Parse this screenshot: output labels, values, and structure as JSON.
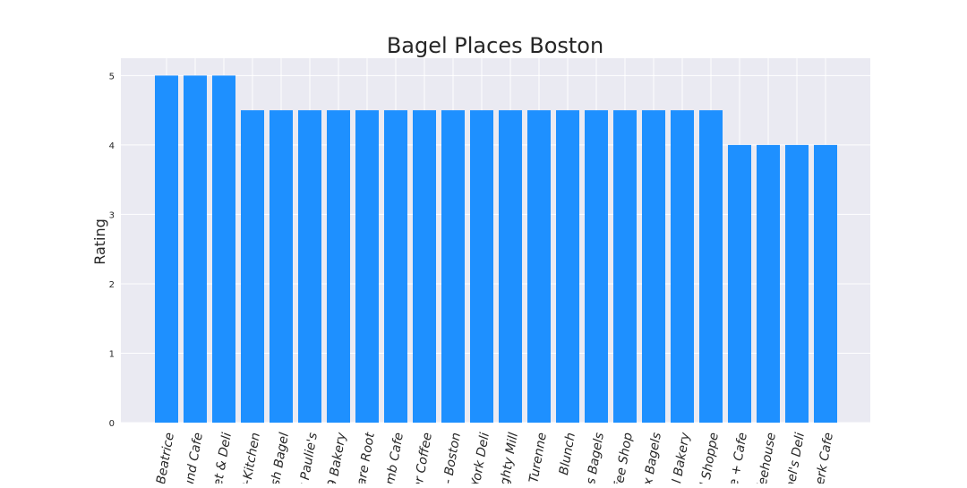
{
  "colors": {
    "bar": "#1E90FF",
    "plot_background": "#EAEAF2",
    "grid": "#FFFFFF"
  },
  "chart_data": {
    "type": "bar",
    "title": "Bagel Places Boston",
    "xlabel": "",
    "ylabel": "Rating",
    "ylim": [
      0,
      5.25
    ],
    "yticks": [
      "0",
      "1",
      "2",
      "3",
      "4",
      "5"
    ],
    "grid": true,
    "categories": [
      "Beatrice",
      "und Cafe",
      "ket & Deli",
      "+Kitchen",
      "sh Bagel",
      "t Paulie's",
      "9 Bakery",
      "are Root",
      "omb Cafe",
      "er Coffee",
      "- Boston",
      "York Deli",
      "ighty Mill",
      "Turenne",
      "Blunch",
      "s Bagels",
      "ffee Shop",
      "ox Bagels",
      "el Bakery",
      "l Shoppe",
      "e + Cafe",
      "ffeehouse",
      "ael's Deli",
      "Perk Cafe"
    ],
    "values": [
      5,
      5,
      5,
      4.5,
      4.5,
      4.5,
      4.5,
      4.5,
      4.5,
      4.5,
      4.5,
      4.5,
      4.5,
      4.5,
      4.5,
      4.5,
      4.5,
      4.5,
      4.5,
      4.5,
      4,
      4,
      4,
      4
    ]
  }
}
